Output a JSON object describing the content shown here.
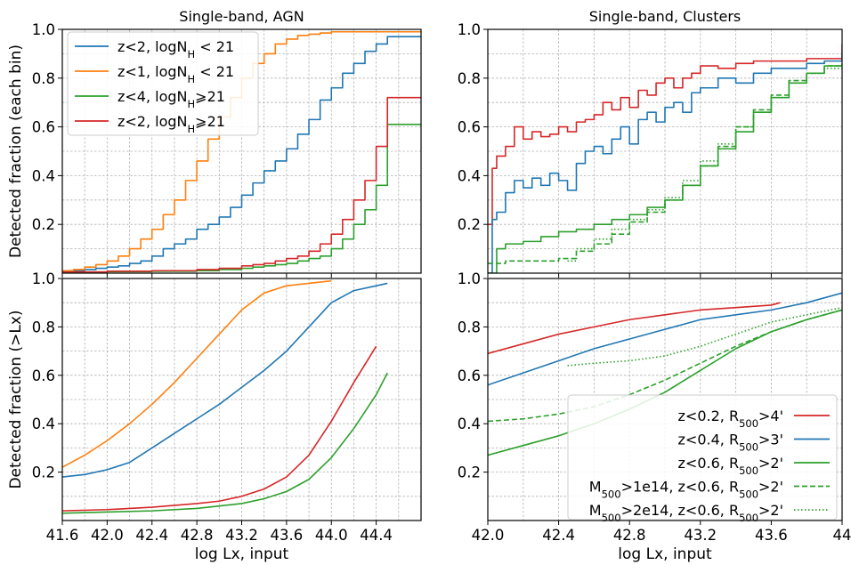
{
  "colors": {
    "blue": "#1f77b4",
    "orange": "#ff7f0e",
    "green": "#2ca02c",
    "red": "#d62728"
  },
  "chart_data": [
    {
      "id": "agn_bin",
      "type": "line",
      "step": true,
      "title": "Single-band, AGN",
      "xlabel": "",
      "ylabel": "Detected fraction (each bin)",
      "xlim": [
        41.6,
        44.8
      ],
      "ylim": [
        0.0,
        1.0
      ],
      "xticks": [
        41.6,
        42.0,
        42.4,
        42.8,
        43.2,
        43.6,
        44.0,
        44.4
      ],
      "yticks": [
        "1.0",
        "0.8",
        "0.6",
        "0.4",
        "0.2"
      ],
      "grid": true,
      "legend": "upper-left",
      "series": [
        {
          "name": "z<2, logN",
          "sub": "H",
          "suffix": " < 21",
          "color": "blue",
          "x": [
            41.6,
            41.7,
            41.8,
            41.9,
            42.0,
            42.1,
            42.2,
            42.3,
            42.4,
            42.5,
            42.6,
            42.7,
            42.8,
            42.9,
            43.0,
            43.1,
            43.2,
            43.3,
            43.4,
            43.5,
            43.6,
            43.7,
            43.8,
            43.9,
            44.0,
            44.1,
            44.2,
            44.3,
            44.4,
            44.5,
            44.8
          ],
          "y": [
            0.01,
            0.01,
            0.015,
            0.02,
            0.025,
            0.03,
            0.04,
            0.05,
            0.07,
            0.1,
            0.12,
            0.14,
            0.18,
            0.2,
            0.23,
            0.27,
            0.32,
            0.37,
            0.42,
            0.46,
            0.51,
            0.57,
            0.63,
            0.71,
            0.76,
            0.82,
            0.86,
            0.91,
            0.94,
            0.97,
            0.97
          ]
        },
        {
          "name": "z<1, logN",
          "sub": "H",
          "suffix": " < 21",
          "color": "orange",
          "x": [
            41.6,
            41.7,
            41.8,
            41.9,
            42.0,
            42.1,
            42.2,
            42.3,
            42.4,
            42.5,
            42.6,
            42.7,
            42.8,
            42.9,
            43.0,
            43.1,
            43.2,
            43.3,
            43.4,
            43.5,
            43.6,
            43.7,
            43.8,
            43.9,
            44.0,
            44.1,
            44.8
          ],
          "y": [
            0.01,
            0.015,
            0.025,
            0.035,
            0.05,
            0.07,
            0.1,
            0.14,
            0.18,
            0.24,
            0.3,
            0.38,
            0.46,
            0.55,
            0.64,
            0.72,
            0.8,
            0.86,
            0.9,
            0.94,
            0.96,
            0.975,
            0.98,
            0.985,
            0.99,
            0.99,
            0.99
          ]
        },
        {
          "name": "z<4, logN",
          "sub": "H",
          "suffix": "⩾21",
          "color": "green",
          "x": [
            41.6,
            42.0,
            42.4,
            42.8,
            43.0,
            43.2,
            43.3,
            43.4,
            43.5,
            43.6,
            43.7,
            43.8,
            43.9,
            44.0,
            44.1,
            44.2,
            44.3,
            44.4,
            44.5,
            44.8
          ],
          "y": [
            0.005,
            0.006,
            0.008,
            0.01,
            0.015,
            0.02,
            0.025,
            0.03,
            0.035,
            0.04,
            0.05,
            0.06,
            0.07,
            0.1,
            0.14,
            0.2,
            0.26,
            0.36,
            0.61,
            0.61
          ]
        },
        {
          "name": "z<2, logN",
          "sub": "H",
          "suffix": "⩾21",
          "color": "red",
          "x": [
            41.6,
            42.0,
            42.4,
            42.8,
            43.0,
            43.2,
            43.3,
            43.4,
            43.5,
            43.6,
            43.7,
            43.8,
            43.9,
            44.0,
            44.1,
            44.2,
            44.3,
            44.4,
            44.5,
            44.8
          ],
          "y": [
            0.005,
            0.008,
            0.01,
            0.015,
            0.02,
            0.03,
            0.035,
            0.04,
            0.05,
            0.06,
            0.07,
            0.09,
            0.12,
            0.16,
            0.22,
            0.3,
            0.38,
            0.52,
            0.72,
            0.72
          ]
        }
      ]
    },
    {
      "id": "clusters_bin",
      "type": "line",
      "step": true,
      "title": "Single-band, Clusters",
      "xlabel": "",
      "ylabel": "",
      "xlim": [
        42.0,
        44.0
      ],
      "ylim": [
        0.0,
        1.0
      ],
      "xticks": [
        42.0,
        42.4,
        42.8,
        43.2,
        43.6,
        44.0
      ],
      "yticks": [
        "1.0",
        "0.8",
        "0.6",
        "0.4",
        "0.2"
      ],
      "grid": true,
      "legend": "",
      "series": [
        {
          "color": "red",
          "dash": "solid",
          "x": [
            42.0,
            42.025,
            42.05,
            42.1,
            42.15,
            42.2,
            42.25,
            42.3,
            42.35,
            42.4,
            42.45,
            42.5,
            42.55,
            42.6,
            42.65,
            42.7,
            42.75,
            42.8,
            42.85,
            42.9,
            42.95,
            43.0,
            43.05,
            43.1,
            43.15,
            43.2,
            43.3,
            43.4,
            43.5,
            43.6,
            43.7,
            43.8,
            43.9,
            44.0
          ],
          "y": [
            0.2,
            0.43,
            0.48,
            0.52,
            0.6,
            0.55,
            0.58,
            0.56,
            0.57,
            0.6,
            0.58,
            0.62,
            0.63,
            0.65,
            0.7,
            0.67,
            0.72,
            0.68,
            0.75,
            0.73,
            0.78,
            0.8,
            0.76,
            0.8,
            0.82,
            0.85,
            0.84,
            0.86,
            0.87,
            0.87,
            0.87,
            0.88,
            0.88,
            0.94
          ]
        },
        {
          "color": "blue",
          "dash": "solid",
          "x": [
            42.0,
            42.025,
            42.05,
            42.1,
            42.15,
            42.2,
            42.25,
            42.3,
            42.35,
            42.4,
            42.45,
            42.5,
            42.55,
            42.6,
            42.65,
            42.7,
            42.75,
            42.8,
            42.85,
            42.9,
            42.95,
            43.0,
            43.05,
            43.1,
            43.15,
            43.2,
            43.3,
            43.4,
            43.5,
            43.6,
            43.7,
            43.8,
            43.9,
            44.0
          ],
          "y": [
            0.0,
            0.22,
            0.25,
            0.33,
            0.38,
            0.35,
            0.39,
            0.36,
            0.41,
            0.38,
            0.34,
            0.45,
            0.5,
            0.52,
            0.49,
            0.55,
            0.6,
            0.53,
            0.63,
            0.66,
            0.62,
            0.68,
            0.7,
            0.66,
            0.74,
            0.76,
            0.8,
            0.78,
            0.82,
            0.84,
            0.84,
            0.86,
            0.87,
            0.9
          ]
        },
        {
          "color": "green",
          "dash": "solid",
          "x": [
            42.0,
            42.05,
            42.1,
            42.2,
            42.3,
            42.4,
            42.5,
            42.6,
            42.7,
            42.8,
            42.9,
            43.0,
            43.1,
            43.2,
            43.3,
            43.4,
            43.5,
            43.6,
            43.7,
            43.8,
            43.9,
            44.0
          ],
          "y": [
            0.0,
            0.1,
            0.12,
            0.13,
            0.15,
            0.17,
            0.18,
            0.2,
            0.22,
            0.24,
            0.27,
            0.3,
            0.36,
            0.44,
            0.51,
            0.58,
            0.66,
            0.72,
            0.78,
            0.82,
            0.85,
            0.86
          ]
        },
        {
          "color": "green",
          "dash": "dashed",
          "x": [
            42.0,
            42.1,
            42.2,
            42.3,
            42.4,
            42.5,
            42.6,
            42.7,
            42.8,
            42.9,
            43.0,
            43.1,
            43.2,
            43.3,
            43.4,
            43.5,
            43.6,
            43.7,
            43.8,
            43.9,
            44.0
          ],
          "y": [
            0.04,
            0.05,
            0.05,
            0.05,
            0.06,
            0.09,
            0.12,
            0.16,
            0.21,
            0.25,
            0.3,
            0.36,
            0.44,
            0.52,
            0.6,
            0.67,
            0.73,
            0.79,
            0.82,
            0.85,
            0.86
          ]
        },
        {
          "color": "green",
          "dash": "dotted",
          "x": [
            42.45,
            42.5,
            42.6,
            42.7,
            42.8,
            42.9,
            43.0,
            43.1,
            43.2,
            43.3,
            43.4,
            43.5,
            43.6,
            43.7,
            43.8,
            43.9,
            44.0
          ],
          "y": [
            0.05,
            0.1,
            0.14,
            0.18,
            0.22,
            0.26,
            0.31,
            0.38,
            0.46,
            0.53,
            0.6,
            0.66,
            0.72,
            0.78,
            0.82,
            0.84,
            0.86
          ]
        }
      ]
    },
    {
      "id": "agn_cum",
      "type": "line",
      "title": "",
      "xlabel": "log Lx, input",
      "ylabel": "Detected fraction (>Lx)",
      "xlim": [
        41.6,
        44.8
      ],
      "ylim": [
        0.0,
        1.0
      ],
      "xticks": [
        "41.6",
        "42.0",
        "42.4",
        "42.8",
        "43.2",
        "43.6",
        "44.0",
        "44.4"
      ],
      "yticks": [
        "1.0",
        "0.8",
        "0.6",
        "0.4",
        "0.2"
      ],
      "grid": true,
      "series": [
        {
          "color": "blue",
          "x": [
            41.6,
            41.8,
            42.0,
            42.2,
            42.4,
            42.6,
            42.8,
            43.0,
            43.2,
            43.4,
            43.6,
            43.8,
            44.0,
            44.2,
            44.4,
            44.5
          ],
          "y": [
            0.18,
            0.19,
            0.21,
            0.24,
            0.3,
            0.36,
            0.42,
            0.48,
            0.55,
            0.62,
            0.7,
            0.8,
            0.9,
            0.95,
            0.97,
            0.98
          ]
        },
        {
          "color": "orange",
          "x": [
            41.6,
            41.8,
            42.0,
            42.2,
            42.4,
            42.6,
            42.8,
            43.0,
            43.2,
            43.4,
            43.6,
            43.8,
            44.0
          ],
          "y": [
            0.22,
            0.27,
            0.33,
            0.4,
            0.48,
            0.57,
            0.67,
            0.77,
            0.87,
            0.94,
            0.97,
            0.98,
            0.99
          ]
        },
        {
          "color": "green",
          "x": [
            41.6,
            42.0,
            42.4,
            42.8,
            43.0,
            43.2,
            43.4,
            43.6,
            43.8,
            44.0,
            44.2,
            44.4,
            44.5
          ],
          "y": [
            0.03,
            0.035,
            0.04,
            0.05,
            0.06,
            0.07,
            0.09,
            0.12,
            0.17,
            0.26,
            0.38,
            0.52,
            0.61
          ]
        },
        {
          "color": "red",
          "x": [
            41.6,
            42.0,
            42.4,
            42.8,
            43.0,
            43.2,
            43.4,
            43.6,
            43.8,
            44.0,
            44.2,
            44.4
          ],
          "y": [
            0.04,
            0.045,
            0.055,
            0.07,
            0.08,
            0.1,
            0.13,
            0.18,
            0.27,
            0.41,
            0.57,
            0.72
          ]
        }
      ]
    },
    {
      "id": "clusters_cum",
      "type": "line",
      "title": "",
      "xlabel": "log Lx, input",
      "ylabel": "",
      "xlim": [
        42.0,
        44.0
      ],
      "ylim": [
        0.0,
        1.0
      ],
      "xticks": [
        "42.0",
        "42.4",
        "42.8",
        "43.2",
        "43.6",
        "44"
      ],
      "yticks": [
        "1.0",
        "0.8",
        "0.6",
        "0.4",
        "0.2"
      ],
      "grid": true,
      "legend": "lower-right",
      "series": [
        {
          "color": "red",
          "dash": "solid",
          "label_pre": "z<0.2, R",
          "sub": "500",
          "label_post": ">4'",
          "x": [
            42.0,
            42.2,
            42.4,
            42.6,
            42.8,
            43.0,
            43.2,
            43.4,
            43.6,
            43.65
          ],
          "y": [
            0.69,
            0.73,
            0.77,
            0.8,
            0.83,
            0.85,
            0.87,
            0.88,
            0.89,
            0.9
          ]
        },
        {
          "color": "blue",
          "dash": "solid",
          "label_pre": "z<0.4, R",
          "sub": "500",
          "label_post": ">3'",
          "x": [
            42.0,
            42.2,
            42.4,
            42.6,
            42.8,
            43.0,
            43.2,
            43.4,
            43.6,
            43.8,
            44.0
          ],
          "y": [
            0.56,
            0.61,
            0.66,
            0.71,
            0.75,
            0.79,
            0.83,
            0.85,
            0.87,
            0.9,
            0.94
          ]
        },
        {
          "color": "green",
          "dash": "solid",
          "label_pre": "z<0.6, R",
          "sub": "500",
          "label_post": ">2'",
          "x": [
            42.0,
            42.2,
            42.4,
            42.6,
            42.8,
            43.0,
            43.2,
            43.4,
            43.6,
            43.8,
            44.0
          ],
          "y": [
            0.27,
            0.31,
            0.35,
            0.4,
            0.46,
            0.53,
            0.62,
            0.71,
            0.78,
            0.83,
            0.87
          ]
        },
        {
          "color": "green",
          "dash": "dashed",
          "label_pre": "M",
          "sub": "500",
          "label_post": ">1e14, z<0.6, R",
          "sub2": "500",
          "label_post2": ">2'",
          "x": [
            42.0,
            42.2,
            42.4,
            42.6,
            42.8,
            43.0,
            43.2,
            43.4,
            43.6,
            43.8,
            44.0
          ],
          "y": [
            0.41,
            0.42,
            0.44,
            0.47,
            0.52,
            0.58,
            0.65,
            0.72,
            0.78,
            0.83,
            0.87
          ]
        },
        {
          "color": "green",
          "dash": "dotted",
          "label_pre": "M",
          "sub": "500",
          "label_post": ">2e14, z<0.6, R",
          "sub2": "500",
          "label_post2": ">2'",
          "x": [
            42.45,
            42.6,
            42.8,
            43.0,
            43.2,
            43.4,
            43.6,
            43.8,
            44.0
          ],
          "y": [
            0.64,
            0.65,
            0.66,
            0.68,
            0.72,
            0.77,
            0.82,
            0.85,
            0.88
          ]
        }
      ]
    }
  ]
}
